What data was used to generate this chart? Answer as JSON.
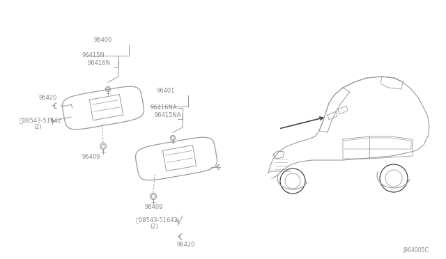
{
  "bg_color": "#ffffff",
  "line_color": "#999999",
  "dark_line_color": "#444444",
  "text_color": "#888888",
  "diagram_id": "J964005C",
  "parts": {
    "visor1_label": "96400",
    "visor1_sub1": "96415N",
    "visor1_sub2": "96416N",
    "visor1_clip": "96409",
    "visor1_hook": "96420",
    "visor1_bolt": "Ⓝ08543-51642",
    "visor1_bolt_qty": "(2)",
    "visor2_label": "96401",
    "visor2_sub1": "96416NA",
    "visor2_sub2": "96415NA",
    "visor2_clip": "96409",
    "visor2_hook": "96420",
    "visor2_bolt": "Ⓝ08543-51642",
    "visor2_bolt_qty": "(2)"
  }
}
